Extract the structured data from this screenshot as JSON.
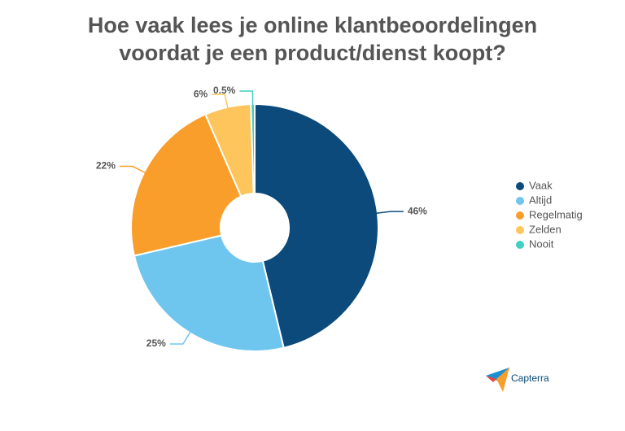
{
  "chart_data": {
    "type": "donut",
    "title": "Hoe vaak lees je online klantbeoordelingen voordat je een product/dienst koopt?",
    "categories": [
      "Vaak",
      "Altijd",
      "Regelmatig",
      "Zelden",
      "Nooit"
    ],
    "values": [
      46,
      25,
      22,
      6,
      0.5
    ],
    "value_labels": [
      "46%",
      "25%",
      "22%",
      "6%",
      "0.5%"
    ],
    "colors": [
      "#0b4a7b",
      "#6ec6ef",
      "#f99e2b",
      "#fdc55c",
      "#40cfc4"
    ],
    "legend": "right"
  },
  "logo": "Capterra"
}
